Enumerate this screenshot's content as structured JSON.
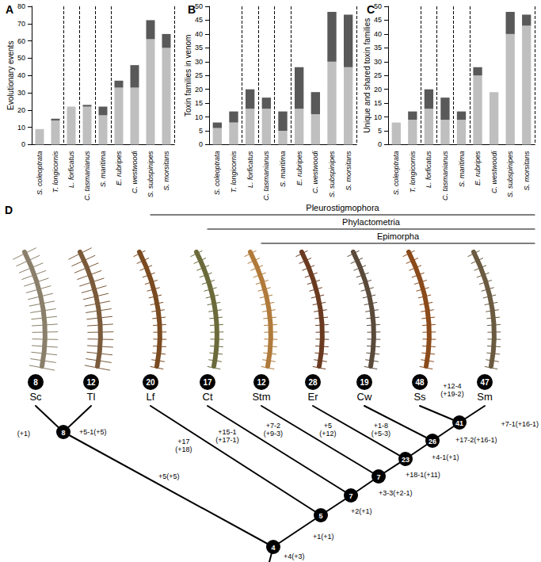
{
  "chart_data": [
    {
      "type": "bar",
      "title": "A",
      "y_label": "Evolutionary events",
      "categories": [
        "S. coleoptrata",
        "T. longicornis",
        "L. forficatus",
        "C. tasmanianus",
        "S. maritima",
        "E. rubripes",
        "C. westwoodi",
        "S. subspinipes",
        "S. morsitans"
      ],
      "series": [
        {
          "color": "#bfbfbf",
          "values": [
            9,
            14,
            22,
            22,
            17,
            33,
            33,
            61,
            56
          ]
        },
        {
          "color": "#595959",
          "values": [
            0,
            1,
            0,
            1,
            5,
            4,
            13,
            11,
            8
          ]
        }
      ],
      "stacked": true,
      "grid": false,
      "ylim": [
        0,
        80
      ],
      "yticks": [
        0,
        10,
        20,
        30,
        40,
        50,
        60,
        70,
        80
      ]
    },
    {
      "type": "bar",
      "title": "B",
      "y_label": "Toxin families in venom",
      "categories": [
        "S. coleoptrata",
        "T. longicornis",
        "L. forficatus",
        "C. tasmanianus",
        "S. maritima",
        "E. rubripes",
        "C. westwoodi",
        "S. subspinipes",
        "S. morsitans"
      ],
      "series": [
        {
          "color": "#bfbfbf",
          "values": [
            6,
            8,
            13,
            13,
            5,
            13,
            11,
            30,
            28
          ]
        },
        {
          "color": "#595959",
          "values": [
            2,
            4,
            7,
            4,
            7,
            15,
            8,
            18,
            19
          ]
        }
      ],
      "stacked": true,
      "grid": false,
      "ylim": [
        0,
        50
      ],
      "yticks": [
        0,
        5,
        10,
        15,
        20,
        25,
        30,
        35,
        40,
        45,
        50
      ]
    },
    {
      "type": "bar",
      "title": "C",
      "y_label": "Unique and shared toxin families",
      "categories": [
        "S. coleoptrata",
        "T. longicornis",
        "L. forficatus",
        "C. tasmanianus",
        "S. maritima",
        "E. rubripes",
        "C. westwoodi",
        "S. subspinipes",
        "S. morsitans"
      ],
      "series": [
        {
          "color": "#bfbfbf",
          "values": [
            8,
            9,
            13,
            9,
            9,
            25,
            19,
            40,
            43
          ]
        },
        {
          "color": "#595959",
          "values": [
            0,
            3,
            7,
            8,
            3,
            3,
            0,
            8,
            4
          ]
        }
      ],
      "stacked": true,
      "grid": false,
      "ylim": [
        0,
        50
      ],
      "yticks": [
        0,
        5,
        10,
        15,
        20,
        25,
        30,
        35,
        40,
        45,
        50
      ]
    }
  ],
  "tree": {
    "title": "D",
    "clades": [
      {
        "name": "Pleurostigmophora",
        "from": "Lf"
      },
      {
        "name": "Phylactometria",
        "from": "Ct"
      },
      {
        "name": "Epimorpha",
        "from": "Stm"
      }
    ],
    "tips": [
      {
        "label": "Sc",
        "count": 8,
        "parent": 0,
        "branch": [
          "(+1)"
        ]
      },
      {
        "label": "Tl",
        "count": 12,
        "parent": 0,
        "branch": [
          "+5-1(+5)"
        ]
      },
      {
        "label": "Lf",
        "count": 20,
        "parent": 2,
        "branch": [
          "+17",
          "(+18)"
        ]
      },
      {
        "label": "Ct",
        "count": 17,
        "parent": 3,
        "branch": [
          "+15-1",
          "(+17-1)"
        ]
      },
      {
        "label": "Stm",
        "count": 12,
        "parent": 4,
        "branch": [
          "+7-2",
          "(+9-3)"
        ]
      },
      {
        "label": "Er",
        "count": 28,
        "parent": 5,
        "branch": [
          "+5",
          "(+12)"
        ]
      },
      {
        "label": "Cw",
        "count": 19,
        "parent": 6,
        "branch": [
          "+1-8",
          "(+5-3)"
        ]
      },
      {
        "label": "Ss",
        "count": 48,
        "parent": 7,
        "branch": [
          "+12-4",
          "(+19-2)"
        ]
      },
      {
        "label": "Sm",
        "count": 47,
        "parent": 7,
        "branch": [
          "+7-1(+16-1)"
        ]
      }
    ],
    "nodes": [
      {
        "count": 8,
        "parent": 1,
        "branch": [
          "+5(+5)"
        ]
      },
      {
        "count": 4,
        "parent": null,
        "branch": [
          "+4(+3)"
        ]
      },
      {
        "count": 5,
        "parent": 1,
        "branch": [
          "+1(+1)"
        ]
      },
      {
        "count": 7,
        "parent": 2,
        "branch": [
          "+2(+1)"
        ]
      },
      {
        "count": 7,
        "parent": 3,
        "branch": [
          "+3-3(+2-1)"
        ]
      },
      {
        "count": 23,
        "parent": 4,
        "branch": [
          "+18-1(+11)"
        ]
      },
      {
        "count": 26,
        "parent": 5,
        "branch": [
          "+4-1(+1)"
        ]
      },
      {
        "count": 41,
        "parent": 6,
        "branch": [
          "+17-2(+16-1)"
        ]
      }
    ]
  }
}
